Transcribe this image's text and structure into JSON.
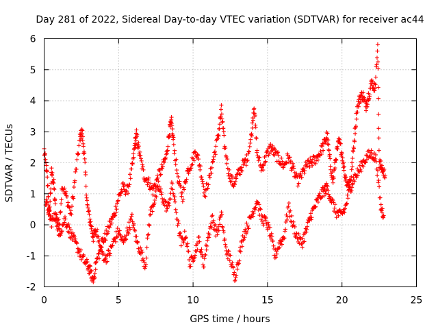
{
  "chart_data": {
    "type": "scatter",
    "title": "Day 281 of 2022, Sidereal Day-to-day VTEC variation (SDTVAR) for receiver ac44",
    "xlabel": "GPS time / hours",
    "ylabel": "SDTVAR / TECUs",
    "xlim": [
      0,
      25
    ],
    "ylim": [
      -2,
      6
    ],
    "x_ticks": [
      0,
      5,
      10,
      15,
      20,
      25
    ],
    "y_ticks": [
      -2,
      -1,
      0,
      1,
      2,
      3,
      4,
      5,
      6
    ],
    "x_tick_labels": [
      "0",
      "5",
      "10",
      "15",
      "20",
      "25"
    ],
    "y_tick_labels": [
      "-2",
      "-1",
      "0",
      "1",
      "2",
      "3",
      "4",
      "5",
      "6"
    ],
    "grid": true,
    "marker": "+",
    "series": [
      {
        "name": "ac44",
        "color": "#ff0000",
        "track_a": [
          [
            0.0,
            2.4
          ],
          [
            0.2,
            1.6
          ],
          [
            0.35,
            0.3
          ],
          [
            0.5,
            1.7
          ],
          [
            0.65,
            1.3
          ],
          [
            0.8,
            0.2
          ],
          [
            1.0,
            -0.3
          ],
          [
            1.2,
            1.3
          ],
          [
            1.5,
            0.9
          ],
          [
            1.8,
            0.3
          ],
          [
            2.1,
            1.6
          ],
          [
            2.4,
            2.8
          ],
          [
            2.55,
            3.0
          ],
          [
            2.7,
            2.2
          ],
          [
            2.9,
            0.6
          ],
          [
            3.1,
            0.1
          ],
          [
            3.3,
            -0.4
          ],
          [
            3.5,
            -0.2
          ],
          [
            3.8,
            -0.6
          ],
          [
            4.1,
            -0.4
          ],
          [
            4.4,
            0.0
          ],
          [
            4.7,
            0.3
          ],
          [
            5.0,
            0.9
          ],
          [
            5.3,
            1.2
          ],
          [
            5.6,
            1.1
          ],
          [
            5.9,
            1.8
          ],
          [
            6.1,
            2.6
          ],
          [
            6.2,
            2.9
          ],
          [
            6.4,
            2.3
          ],
          [
            6.7,
            1.6
          ],
          [
            7.0,
            1.4
          ],
          [
            7.3,
            1.1
          ],
          [
            7.6,
            1.5
          ],
          [
            7.9,
            1.8
          ],
          [
            8.2,
            2.2
          ],
          [
            8.4,
            3.0
          ],
          [
            8.55,
            3.3
          ],
          [
            8.7,
            2.6
          ],
          [
            9.0,
            1.4
          ],
          [
            9.3,
            0.9
          ],
          [
            9.6,
            1.7
          ],
          [
            9.9,
            2.0
          ],
          [
            10.2,
            2.4
          ],
          [
            10.5,
            1.8
          ],
          [
            10.8,
            1.0
          ],
          [
            11.1,
            1.5
          ],
          [
            11.4,
            2.2
          ],
          [
            11.7,
            2.9
          ],
          [
            11.9,
            3.7
          ],
          [
            12.1,
            2.6
          ],
          [
            12.4,
            1.7
          ],
          [
            12.7,
            1.3
          ],
          [
            13.0,
            1.6
          ],
          [
            13.3,
            1.9
          ],
          [
            13.6,
            2.1
          ],
          [
            13.9,
            2.8
          ],
          [
            14.1,
            3.9
          ],
          [
            14.3,
            2.3
          ],
          [
            14.6,
            1.8
          ],
          [
            14.9,
            2.2
          ],
          [
            15.2,
            2.5
          ],
          [
            15.5,
            2.3
          ],
          [
            15.8,
            2.1
          ],
          [
            16.1,
            1.9
          ],
          [
            16.4,
            2.2
          ],
          [
            16.7,
            1.8
          ],
          [
            17.0,
            1.4
          ],
          [
            17.3,
            1.6
          ],
          [
            17.6,
            1.9
          ],
          [
            17.9,
            2.0
          ],
          [
            18.2,
            2.1
          ],
          [
            18.5,
            2.3
          ],
          [
            18.8,
            2.6
          ],
          [
            19.0,
            2.9
          ],
          [
            19.2,
            2.0
          ],
          [
            19.4,
            1.4
          ],
          [
            19.6,
            2.2
          ],
          [
            19.8,
            2.7
          ],
          [
            20.0,
            2.3
          ],
          [
            20.2,
            1.6
          ],
          [
            20.4,
            1.3
          ],
          [
            20.6,
            1.5
          ],
          [
            20.8,
            2.6
          ],
          [
            21.0,
            3.7
          ],
          [
            21.2,
            4.1
          ],
          [
            21.4,
            4.2
          ],
          [
            21.6,
            3.8
          ],
          [
            21.8,
            4.2
          ],
          [
            22.0,
            4.6
          ],
          [
            22.2,
            4.4
          ],
          [
            22.4,
            5.7
          ],
          [
            22.5,
            2.0
          ],
          [
            22.7,
            1.8
          ],
          [
            22.9,
            1.6
          ]
        ],
        "track_b": [
          [
            0.1,
            0.8
          ],
          [
            0.3,
            0.4
          ],
          [
            0.5,
            0.1
          ],
          [
            0.8,
            0.3
          ],
          [
            1.1,
            -0.2
          ],
          [
            1.4,
            0.2
          ],
          [
            1.7,
            -0.2
          ],
          [
            2.0,
            -0.5
          ],
          [
            2.3,
            -0.8
          ],
          [
            2.6,
            -1.1
          ],
          [
            2.9,
            -1.3
          ],
          [
            3.1,
            -1.5
          ],
          [
            3.3,
            -1.8
          ],
          [
            3.5,
            -1.2
          ],
          [
            3.8,
            -0.8
          ],
          [
            4.1,
            -1.1
          ],
          [
            4.4,
            -0.9
          ],
          [
            4.7,
            -0.5
          ],
          [
            5.0,
            -0.2
          ],
          [
            5.3,
            -0.6
          ],
          [
            5.6,
            -0.2
          ],
          [
            5.9,
            0.2
          ],
          [
            6.2,
            -0.5
          ],
          [
            6.5,
            -0.9
          ],
          [
            6.8,
            -1.3
          ],
          [
            7.1,
            0.3
          ],
          [
            7.4,
            0.8
          ],
          [
            7.7,
            1.2
          ],
          [
            8.0,
            0.8
          ],
          [
            8.3,
            0.5
          ],
          [
            8.6,
            1.3
          ],
          [
            8.9,
            0.3
          ],
          [
            9.2,
            -0.6
          ],
          [
            9.5,
            -0.3
          ],
          [
            9.8,
            -1.3
          ],
          [
            10.1,
            -0.9
          ],
          [
            10.4,
            -0.5
          ],
          [
            10.7,
            -1.3
          ],
          [
            11.0,
            -0.4
          ],
          [
            11.3,
            0.2
          ],
          [
            11.6,
            -0.3
          ],
          [
            11.9,
            0.3
          ],
          [
            12.2,
            -0.8
          ],
          [
            12.5,
            -1.1
          ],
          [
            12.8,
            -1.7
          ],
          [
            13.1,
            -1.0
          ],
          [
            13.4,
            -0.3
          ],
          [
            13.7,
            0.0
          ],
          [
            14.0,
            0.4
          ],
          [
            14.3,
            0.8
          ],
          [
            14.6,
            0.2
          ],
          [
            14.9,
            0.1
          ],
          [
            15.2,
            -0.3
          ],
          [
            15.5,
            -1.0
          ],
          [
            15.8,
            -0.6
          ],
          [
            16.1,
            -0.4
          ],
          [
            16.4,
            0.6
          ],
          [
            16.7,
            0.0
          ],
          [
            17.0,
            -0.4
          ],
          [
            17.3,
            -0.6
          ],
          [
            17.6,
            -0.2
          ],
          [
            17.9,
            0.3
          ],
          [
            18.2,
            0.6
          ],
          [
            18.5,
            0.9
          ],
          [
            18.8,
            1.1
          ],
          [
            19.0,
            1.2
          ],
          [
            19.3,
            0.8
          ],
          [
            19.6,
            0.4
          ],
          [
            19.9,
            0.3
          ],
          [
            20.2,
            0.5
          ],
          [
            20.5,
            1.1
          ],
          [
            20.8,
            1.5
          ],
          [
            21.1,
            1.7
          ],
          [
            21.4,
            2.0
          ],
          [
            21.7,
            2.2
          ],
          [
            22.0,
            2.3
          ],
          [
            22.3,
            2.1
          ],
          [
            22.6,
            0.6
          ],
          [
            22.8,
            0.3
          ]
        ]
      }
    ]
  }
}
